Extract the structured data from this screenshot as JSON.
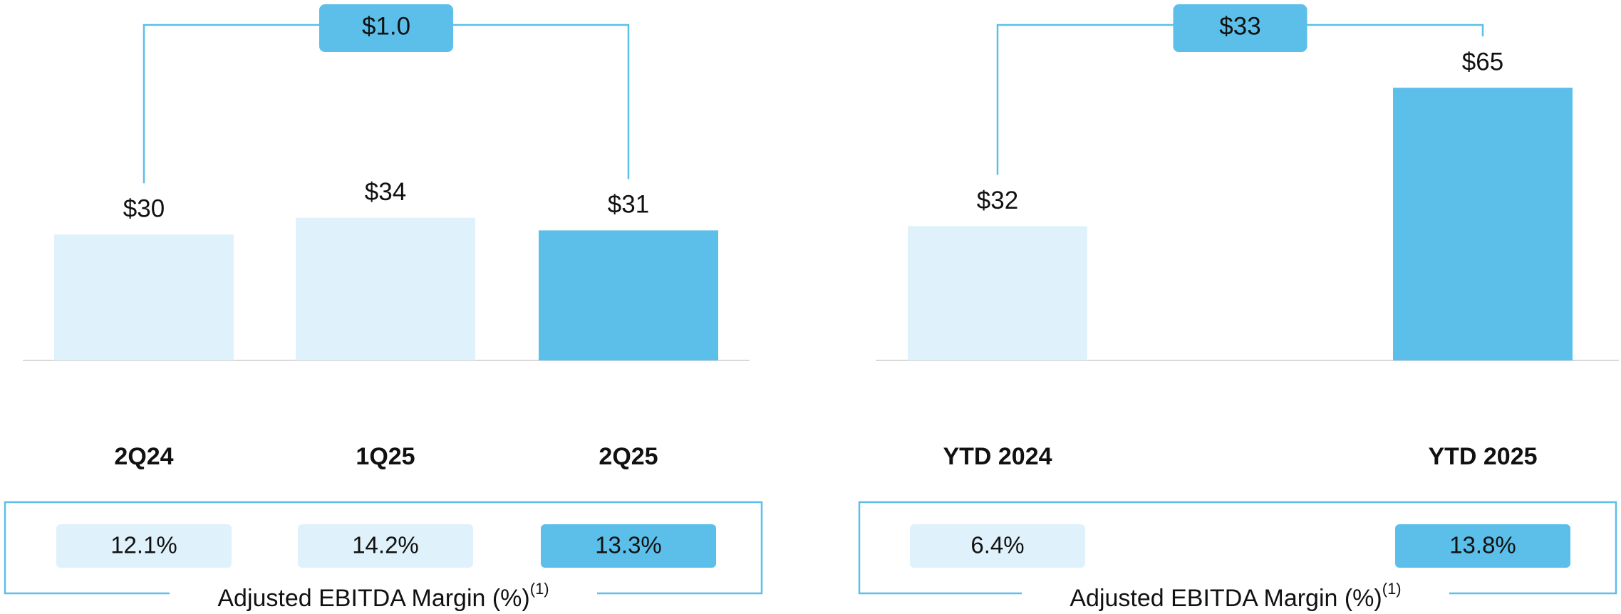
{
  "chart_data": [
    {
      "type": "bar",
      "categories": [
        "2Q24",
        "1Q25",
        "2Q25"
      ],
      "values": [
        30,
        34,
        31
      ],
      "value_labels": [
        "$30",
        "$34",
        "$31"
      ],
      "colors": [
        "#dff1fa",
        "#dff1fa",
        "#5bbfe9"
      ],
      "annotation": "$1.0",
      "margin_labels": [
        "12.1%",
        "14.2%",
        "13.3%"
      ],
      "margin_title": "Adjusted EBITDA Margin (%)",
      "margin_note": "(1)"
    },
    {
      "type": "bar",
      "categories": [
        "YTD 2024",
        "YTD 2025"
      ],
      "values": [
        32,
        65
      ],
      "value_labels": [
        "$32",
        "$65"
      ],
      "colors": [
        "#dff1fa",
        "#5bbfe9"
      ],
      "annotation": "$33",
      "margin_labels": [
        "6.4%",
        "13.8%"
      ],
      "margin_title": "Adjusted EBITDA Margin (%)",
      "margin_note": "(1)"
    }
  ]
}
